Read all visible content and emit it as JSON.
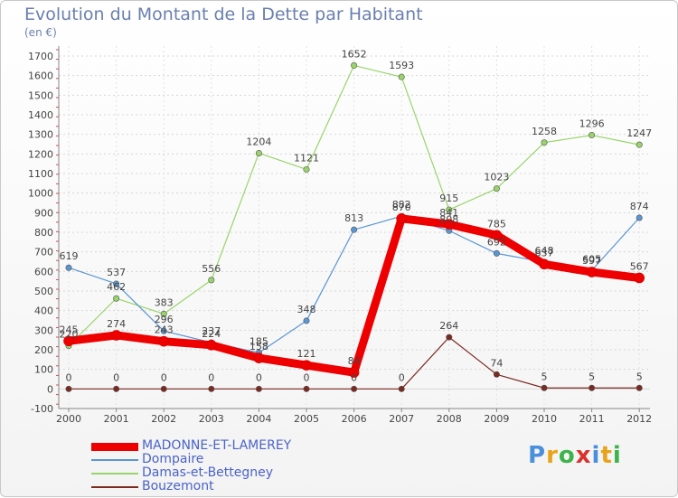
{
  "title": "Evolution du Montant de la Dette par Habitant",
  "unit": "(en €)",
  "logo": "Proxiti",
  "logo_colors": [
    "#4a8fdb",
    "#e8a31a",
    "#3db34a",
    "#d9322c",
    "#4a8fdb",
    "#e8a31a",
    "#3db34a"
  ],
  "chart_data": {
    "type": "line",
    "x": [
      "2000",
      "2001",
      "2002",
      "2003",
      "2004",
      "2005",
      "2006",
      "2007",
      "2008",
      "2009",
      "2010",
      "2011",
      "2012"
    ],
    "ylim": [
      -100,
      1700
    ],
    "yticks": [
      "-100",
      "0",
      "100",
      "200",
      "300",
      "400",
      "500",
      "600",
      "700",
      "800",
      "900",
      "1000",
      "1100",
      "1200",
      "1300",
      "1400",
      "1500",
      "1600",
      "1700"
    ],
    "grid": true,
    "legend_position": "bottom-left",
    "series": [
      {
        "name": "MADONNE-ET-LAMEREY",
        "color": "#ee0000",
        "width": 9,
        "values": [
          245,
          274,
          243,
          224,
          158,
          121,
          84,
          870,
          841,
          785,
          637,
          597,
          567
        ]
      },
      {
        "name": "Dompaire",
        "color": "#5a96d2",
        "width": 1.2,
        "values": [
          619,
          537,
          296,
          237,
          185,
          348,
          813,
          882,
          808,
          692,
          648,
          605,
          874
        ]
      },
      {
        "name": "Damas-et-Bettegney",
        "color": "#99d46a",
        "width": 1.2,
        "values": [
          220,
          462,
          383,
          556,
          1204,
          1121,
          1652,
          1593,
          915,
          1023,
          1258,
          1296,
          1247
        ]
      },
      {
        "name": "Bouzemont",
        "color": "#7b2a22",
        "width": 1.2,
        "values": [
          0,
          0,
          0,
          0,
          0,
          0,
          0,
          0,
          264,
          74,
          5,
          5,
          5
        ]
      }
    ],
    "data_label_order": [
      "Bouzemont",
      "Damas-et-Bettegney",
      "Dompaire",
      "MADONNE-ET-LAMEREY"
    ]
  }
}
